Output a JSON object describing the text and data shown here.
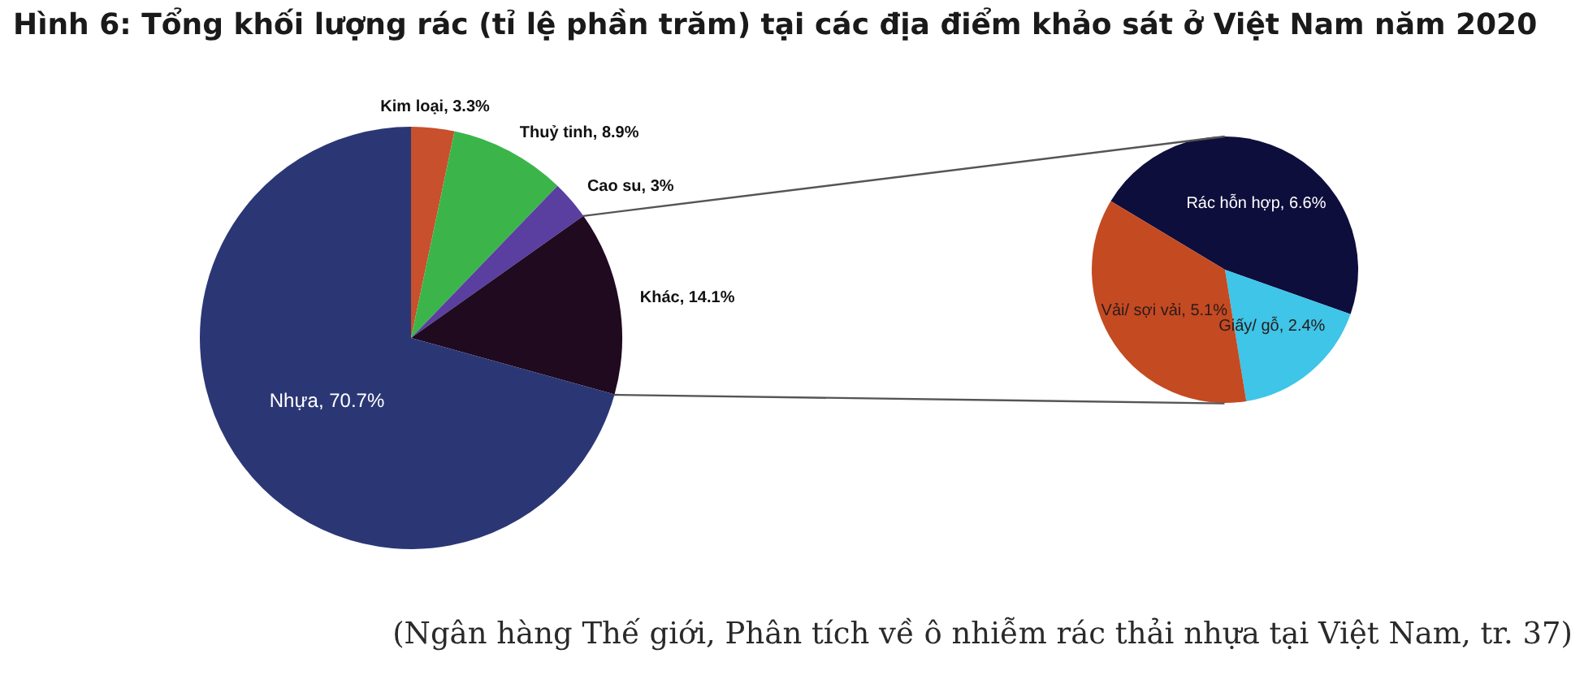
{
  "chart_data": [
    {
      "type": "pie",
      "title": "Hình 6: Tổng khối lượng rác (tỉ lệ phần trăm) tại các địa điểm khảo sát ở Việt Nam năm 2020",
      "categories": [
        "Kim loại",
        "Thuỷ tinh",
        "Cao su",
        "Khác",
        "Nhựa"
      ],
      "values": [
        3.3,
        8.9,
        3,
        14.1,
        70.7
      ],
      "colors": [
        "#c8502c",
        "#3bb54a",
        "#5a3ea0",
        "#200a20",
        "#2b3775"
      ],
      "value_labels": [
        "3.3%",
        "8.9%",
        "3%",
        "14.1%",
        "70.7%"
      ],
      "annotations": [
        "(Ngân hàng Thế giới, Phân tích về ô nhiễm rác thải nhựa tại Việt Nam, tr. 37)"
      ]
    },
    {
      "type": "pie",
      "categories": [
        "Rác hỗn hợp",
        "Giấy/ gỗ",
        "Vải/ sợi vải"
      ],
      "values": [
        6.6,
        2.4,
        5.1
      ],
      "colors": [
        "#0d0e3c",
        "#3ec5e8",
        "#c44a22"
      ],
      "value_labels": [
        "6.6%",
        "2.4%",
        "5.1%"
      ]
    }
  ]
}
